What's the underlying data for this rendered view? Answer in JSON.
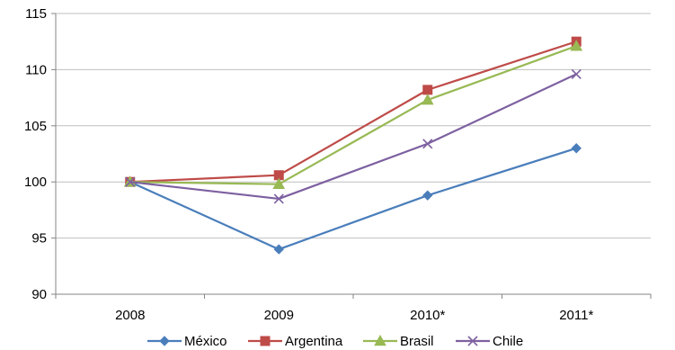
{
  "chart_data": {
    "type": "line",
    "categories": [
      "2008",
      "2009",
      "2010*",
      "2011*"
    ],
    "ylim": [
      90,
      115
    ],
    "yticks": [
      90,
      95,
      100,
      105,
      110,
      115
    ],
    "grid": true,
    "legend_position": "bottom",
    "series": [
      {
        "name": "México",
        "color": "#4a7ebb",
        "marker": "diamond",
        "values": [
          100,
          94.0,
          98.8,
          103.0
        ]
      },
      {
        "name": "Argentina",
        "color": "#be4b48",
        "marker": "square",
        "values": [
          100,
          100.6,
          108.2,
          112.5
        ]
      },
      {
        "name": "Brasil",
        "color": "#98b954",
        "marker": "triangle",
        "values": [
          100,
          99.8,
          107.3,
          112.1
        ]
      },
      {
        "name": "Chile",
        "color": "#7d60a0",
        "marker": "x",
        "values": [
          100,
          98.5,
          103.4,
          109.6
        ]
      }
    ]
  },
  "colors": {
    "gridline": "#bfbfbf",
    "axis": "#868686"
  }
}
